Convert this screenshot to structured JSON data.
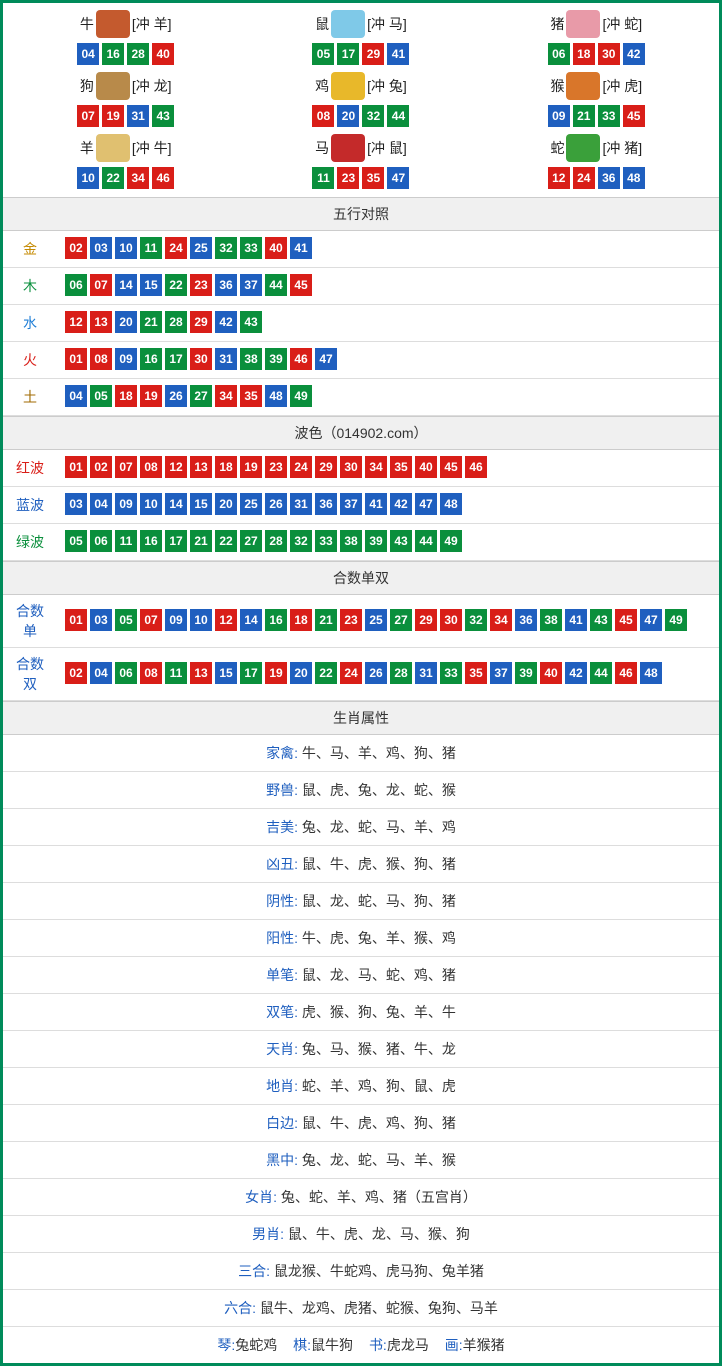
{
  "colors": {
    "border": "#008b5a",
    "red": "#d91e18",
    "blue": "#1f5fbf",
    "green": "#0a8f3c",
    "header_bg": "#f0f0f0"
  },
  "zodiac_icon_colors": {
    "牛": "#c45a2e",
    "鼠": "#7fc9e8",
    "猪": "#e89aa8",
    "狗": "#b88a4a",
    "鸡": "#e8b82a",
    "猴": "#d9762a",
    "羊": "#e0c070",
    "马": "#c42a2a",
    "蛇": "#3aa03a"
  },
  "zodiac": [
    {
      "name": "牛",
      "conflict": "[冲 羊]",
      "balls": [
        {
          "n": "04",
          "c": "blue"
        },
        {
          "n": "16",
          "c": "green"
        },
        {
          "n": "28",
          "c": "green"
        },
        {
          "n": "40",
          "c": "red"
        }
      ]
    },
    {
      "name": "鼠",
      "conflict": "[冲 马]",
      "balls": [
        {
          "n": "05",
          "c": "green"
        },
        {
          "n": "17",
          "c": "green"
        },
        {
          "n": "29",
          "c": "red"
        },
        {
          "n": "41",
          "c": "blue"
        }
      ]
    },
    {
      "name": "猪",
      "conflict": "[冲 蛇]",
      "balls": [
        {
          "n": "06",
          "c": "green"
        },
        {
          "n": "18",
          "c": "red"
        },
        {
          "n": "30",
          "c": "red"
        },
        {
          "n": "42",
          "c": "blue"
        }
      ]
    },
    {
      "name": "狗",
      "conflict": "[冲 龙]",
      "balls": [
        {
          "n": "07",
          "c": "red"
        },
        {
          "n": "19",
          "c": "red"
        },
        {
          "n": "31",
          "c": "blue"
        },
        {
          "n": "43",
          "c": "green"
        }
      ]
    },
    {
      "name": "鸡",
      "conflict": "[冲 兔]",
      "balls": [
        {
          "n": "08",
          "c": "red"
        },
        {
          "n": "20",
          "c": "blue"
        },
        {
          "n": "32",
          "c": "green"
        },
        {
          "n": "44",
          "c": "green"
        }
      ]
    },
    {
      "name": "猴",
      "conflict": "[冲 虎]",
      "balls": [
        {
          "n": "09",
          "c": "blue"
        },
        {
          "n": "21",
          "c": "green"
        },
        {
          "n": "33",
          "c": "green"
        },
        {
          "n": "45",
          "c": "red"
        }
      ]
    },
    {
      "name": "羊",
      "conflict": "[冲 牛]",
      "balls": [
        {
          "n": "10",
          "c": "blue"
        },
        {
          "n": "22",
          "c": "green"
        },
        {
          "n": "34",
          "c": "red"
        },
        {
          "n": "46",
          "c": "red"
        }
      ]
    },
    {
      "name": "马",
      "conflict": "[冲 鼠]",
      "balls": [
        {
          "n": "11",
          "c": "green"
        },
        {
          "n": "23",
          "c": "red"
        },
        {
          "n": "35",
          "c": "red"
        },
        {
          "n": "47",
          "c": "blue"
        }
      ]
    },
    {
      "name": "蛇",
      "conflict": "[冲 猪]",
      "balls": [
        {
          "n": "12",
          "c": "red"
        },
        {
          "n": "24",
          "c": "red"
        },
        {
          "n": "36",
          "c": "blue"
        },
        {
          "n": "48",
          "c": "blue"
        }
      ]
    }
  ],
  "wuxing_header": "五行对照",
  "wuxing": [
    {
      "label": "金",
      "cls": "gold",
      "balls": [
        {
          "n": "02",
          "c": "red"
        },
        {
          "n": "03",
          "c": "blue"
        },
        {
          "n": "10",
          "c": "blue"
        },
        {
          "n": "11",
          "c": "green"
        },
        {
          "n": "24",
          "c": "red"
        },
        {
          "n": "25",
          "c": "blue"
        },
        {
          "n": "32",
          "c": "green"
        },
        {
          "n": "33",
          "c": "green"
        },
        {
          "n": "40",
          "c": "red"
        },
        {
          "n": "41",
          "c": "blue"
        }
      ]
    },
    {
      "label": "木",
      "cls": "wood",
      "balls": [
        {
          "n": "06",
          "c": "green"
        },
        {
          "n": "07",
          "c": "red"
        },
        {
          "n": "14",
          "c": "blue"
        },
        {
          "n": "15",
          "c": "blue"
        },
        {
          "n": "22",
          "c": "green"
        },
        {
          "n": "23",
          "c": "red"
        },
        {
          "n": "36",
          "c": "blue"
        },
        {
          "n": "37",
          "c": "blue"
        },
        {
          "n": "44",
          "c": "green"
        },
        {
          "n": "45",
          "c": "red"
        }
      ]
    },
    {
      "label": "水",
      "cls": "water",
      "balls": [
        {
          "n": "12",
          "c": "red"
        },
        {
          "n": "13",
          "c": "red"
        },
        {
          "n": "20",
          "c": "blue"
        },
        {
          "n": "21",
          "c": "green"
        },
        {
          "n": "28",
          "c": "green"
        },
        {
          "n": "29",
          "c": "red"
        },
        {
          "n": "42",
          "c": "blue"
        },
        {
          "n": "43",
          "c": "green"
        }
      ]
    },
    {
      "label": "火",
      "cls": "fire",
      "balls": [
        {
          "n": "01",
          "c": "red"
        },
        {
          "n": "08",
          "c": "red"
        },
        {
          "n": "09",
          "c": "blue"
        },
        {
          "n": "16",
          "c": "green"
        },
        {
          "n": "17",
          "c": "green"
        },
        {
          "n": "30",
          "c": "red"
        },
        {
          "n": "31",
          "c": "blue"
        },
        {
          "n": "38",
          "c": "green"
        },
        {
          "n": "39",
          "c": "green"
        },
        {
          "n": "46",
          "c": "red"
        },
        {
          "n": "47",
          "c": "blue"
        }
      ]
    },
    {
      "label": "土",
      "cls": "earth",
      "balls": [
        {
          "n": "04",
          "c": "blue"
        },
        {
          "n": "05",
          "c": "green"
        },
        {
          "n": "18",
          "c": "red"
        },
        {
          "n": "19",
          "c": "red"
        },
        {
          "n": "26",
          "c": "blue"
        },
        {
          "n": "27",
          "c": "green"
        },
        {
          "n": "34",
          "c": "red"
        },
        {
          "n": "35",
          "c": "red"
        },
        {
          "n": "48",
          "c": "blue"
        },
        {
          "n": "49",
          "c": "green"
        }
      ]
    }
  ],
  "bose_header": "波色（014902.com）",
  "bose": [
    {
      "label": "红波",
      "cls": "redw",
      "balls": [
        {
          "n": "01",
          "c": "red"
        },
        {
          "n": "02",
          "c": "red"
        },
        {
          "n": "07",
          "c": "red"
        },
        {
          "n": "08",
          "c": "red"
        },
        {
          "n": "12",
          "c": "red"
        },
        {
          "n": "13",
          "c": "red"
        },
        {
          "n": "18",
          "c": "red"
        },
        {
          "n": "19",
          "c": "red"
        },
        {
          "n": "23",
          "c": "red"
        },
        {
          "n": "24",
          "c": "red"
        },
        {
          "n": "29",
          "c": "red"
        },
        {
          "n": "30",
          "c": "red"
        },
        {
          "n": "34",
          "c": "red"
        },
        {
          "n": "35",
          "c": "red"
        },
        {
          "n": "40",
          "c": "red"
        },
        {
          "n": "45",
          "c": "red"
        },
        {
          "n": "46",
          "c": "red"
        }
      ]
    },
    {
      "label": "蓝波",
      "cls": "bluew",
      "balls": [
        {
          "n": "03",
          "c": "blue"
        },
        {
          "n": "04",
          "c": "blue"
        },
        {
          "n": "09",
          "c": "blue"
        },
        {
          "n": "10",
          "c": "blue"
        },
        {
          "n": "14",
          "c": "blue"
        },
        {
          "n": "15",
          "c": "blue"
        },
        {
          "n": "20",
          "c": "blue"
        },
        {
          "n": "25",
          "c": "blue"
        },
        {
          "n": "26",
          "c": "blue"
        },
        {
          "n": "31",
          "c": "blue"
        },
        {
          "n": "36",
          "c": "blue"
        },
        {
          "n": "37",
          "c": "blue"
        },
        {
          "n": "41",
          "c": "blue"
        },
        {
          "n": "42",
          "c": "blue"
        },
        {
          "n": "47",
          "c": "blue"
        },
        {
          "n": "48",
          "c": "blue"
        }
      ]
    },
    {
      "label": "绿波",
      "cls": "greenw",
      "balls": [
        {
          "n": "05",
          "c": "green"
        },
        {
          "n": "06",
          "c": "green"
        },
        {
          "n": "11",
          "c": "green"
        },
        {
          "n": "16",
          "c": "green"
        },
        {
          "n": "17",
          "c": "green"
        },
        {
          "n": "21",
          "c": "green"
        },
        {
          "n": "22",
          "c": "green"
        },
        {
          "n": "27",
          "c": "green"
        },
        {
          "n": "28",
          "c": "green"
        },
        {
          "n": "32",
          "c": "green"
        },
        {
          "n": "33",
          "c": "green"
        },
        {
          "n": "38",
          "c": "green"
        },
        {
          "n": "39",
          "c": "green"
        },
        {
          "n": "43",
          "c": "green"
        },
        {
          "n": "44",
          "c": "green"
        },
        {
          "n": "49",
          "c": "green"
        }
      ]
    }
  ],
  "heshu_header": "合数单双",
  "heshu": [
    {
      "label": "合数单",
      "cls": "heodd",
      "balls": [
        {
          "n": "01",
          "c": "red"
        },
        {
          "n": "03",
          "c": "blue"
        },
        {
          "n": "05",
          "c": "green"
        },
        {
          "n": "07",
          "c": "red"
        },
        {
          "n": "09",
          "c": "blue"
        },
        {
          "n": "10",
          "c": "blue"
        },
        {
          "n": "12",
          "c": "red"
        },
        {
          "n": "14",
          "c": "blue"
        },
        {
          "n": "16",
          "c": "green"
        },
        {
          "n": "18",
          "c": "red"
        },
        {
          "n": "21",
          "c": "green"
        },
        {
          "n": "23",
          "c": "red"
        },
        {
          "n": "25",
          "c": "blue"
        },
        {
          "n": "27",
          "c": "green"
        },
        {
          "n": "29",
          "c": "red"
        },
        {
          "n": "30",
          "c": "red"
        },
        {
          "n": "32",
          "c": "green"
        },
        {
          "n": "34",
          "c": "red"
        },
        {
          "n": "36",
          "c": "blue"
        },
        {
          "n": "38",
          "c": "green"
        },
        {
          "n": "41",
          "c": "blue"
        },
        {
          "n": "43",
          "c": "green"
        },
        {
          "n": "45",
          "c": "red"
        },
        {
          "n": "47",
          "c": "blue"
        },
        {
          "n": "49",
          "c": "green"
        }
      ]
    },
    {
      "label": "合数双",
      "cls": "heeven",
      "balls": [
        {
          "n": "02",
          "c": "red"
        },
        {
          "n": "04",
          "c": "blue"
        },
        {
          "n": "06",
          "c": "green"
        },
        {
          "n": "08",
          "c": "red"
        },
        {
          "n": "11",
          "c": "green"
        },
        {
          "n": "13",
          "c": "red"
        },
        {
          "n": "15",
          "c": "blue"
        },
        {
          "n": "17",
          "c": "green"
        },
        {
          "n": "19",
          "c": "red"
        },
        {
          "n": "20",
          "c": "blue"
        },
        {
          "n": "22",
          "c": "green"
        },
        {
          "n": "24",
          "c": "red"
        },
        {
          "n": "26",
          "c": "blue"
        },
        {
          "n": "28",
          "c": "green"
        },
        {
          "n": "31",
          "c": "blue"
        },
        {
          "n": "33",
          "c": "green"
        },
        {
          "n": "35",
          "c": "red"
        },
        {
          "n": "37",
          "c": "blue"
        },
        {
          "n": "39",
          "c": "green"
        },
        {
          "n": "40",
          "c": "red"
        },
        {
          "n": "42",
          "c": "blue"
        },
        {
          "n": "44",
          "c": "green"
        },
        {
          "n": "46",
          "c": "red"
        },
        {
          "n": "48",
          "c": "blue"
        }
      ]
    }
  ],
  "attr_header": "生肖属性",
  "attrs": [
    {
      "key": "家禽:",
      "val": " 牛、马、羊、鸡、狗、猪"
    },
    {
      "key": "野兽:",
      "val": " 鼠、虎、兔、龙、蛇、猴"
    },
    {
      "key": "吉美:",
      "val": " 兔、龙、蛇、马、羊、鸡"
    },
    {
      "key": "凶丑:",
      "val": " 鼠、牛、虎、猴、狗、猪"
    },
    {
      "key": "阴性:",
      "val": " 鼠、龙、蛇、马、狗、猪"
    },
    {
      "key": "阳性:",
      "val": " 牛、虎、兔、羊、猴、鸡"
    },
    {
      "key": "单笔:",
      "val": " 鼠、龙、马、蛇、鸡、猪"
    },
    {
      "key": "双笔:",
      "val": " 虎、猴、狗、兔、羊、牛"
    },
    {
      "key": "天肖:",
      "val": " 兔、马、猴、猪、牛、龙"
    },
    {
      "key": "地肖:",
      "val": " 蛇、羊、鸡、狗、鼠、虎"
    },
    {
      "key": "白边:",
      "val": " 鼠、牛、虎、鸡、狗、猪"
    },
    {
      "key": "黑中:",
      "val": " 兔、龙、蛇、马、羊、猴"
    },
    {
      "key": "女肖:",
      "val": " 兔、蛇、羊、鸡、猪（五宫肖）"
    },
    {
      "key": "男肖:",
      "val": " 鼠、牛、虎、龙、马、猴、狗"
    },
    {
      "key": "三合:",
      "val": " 鼠龙猴、牛蛇鸡、虎马狗、兔羊猪"
    },
    {
      "key": "六合:",
      "val": " 鼠牛、龙鸡、虎猪、蛇猴、兔狗、马羊"
    }
  ],
  "bottom": [
    {
      "key": "琴:",
      "val": "兔蛇鸡"
    },
    {
      "key": "棋:",
      "val": "鼠牛狗"
    },
    {
      "key": "书:",
      "val": "虎龙马"
    },
    {
      "key": "画:",
      "val": "羊猴猪"
    }
  ]
}
